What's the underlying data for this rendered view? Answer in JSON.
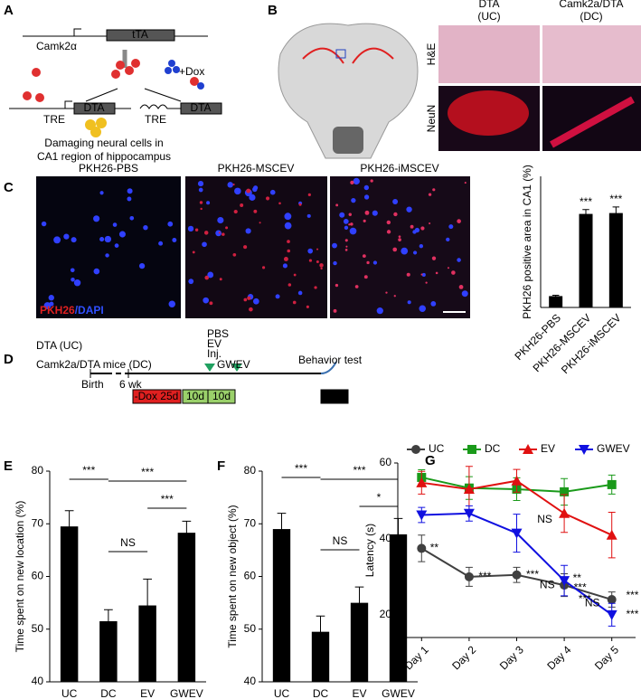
{
  "panel_labels": [
    "A",
    "B",
    "C",
    "D",
    "E",
    "F",
    "G"
  ],
  "panel_a": {
    "promoter": "Camk2α",
    "transactivator": "tTA",
    "dox": "+Dox",
    "dta_left": "DTA",
    "tre_left": "TRE",
    "dta_right": "DTA",
    "tre_right": "TRE",
    "caption": [
      "Damaging neural cells in",
      "CA1 region of hippocampus"
    ]
  },
  "panel_b": {
    "columns": [
      [
        "DTA",
        "(UC)"
      ],
      [
        "Camk2a/DTA",
        "(DC)"
      ]
    ],
    "rows": [
      "H&E",
      "NeuN"
    ]
  },
  "panel_c": {
    "images": [
      "PKH26-PBS",
      "PKH26-MSCEV",
      "PKH26-iMSCEV"
    ],
    "stain": [
      "PKH26",
      "/DAPI"
    ]
  },
  "panel_d": {
    "groups": [
      "DTA (UC)",
      "Camk2a/DTA mice (DC)"
    ],
    "injections": [
      "PBS",
      "EV",
      "Inj.",
      "GWEV"
    ],
    "behavior": "Behavior test",
    "birth": "Birth",
    "age": "6 wk",
    "phases": [
      "-Dox 25d",
      "10d",
      "10d"
    ]
  },
  "chart_data": [
    {
      "type": "bar",
      "ylabel": "PKH26 positive area in CA1 (%)",
      "categories": [
        "PKH26-PBS",
        "PKH26-MSCEV",
        "PKH26-iMSCEV"
      ],
      "values": [
        0.65,
        5.35,
        5.4
      ],
      "errors": [
        0.05,
        0.25,
        0.35
      ],
      "color": "#000000",
      "ylim": [
        0,
        7.5
      ],
      "annotations": [
        "***",
        "***"
      ]
    },
    {
      "type": "bar",
      "ylabel": "Time spent on new location (%)",
      "categories": [
        "UC",
        "DC",
        "EV",
        "GWEV"
      ],
      "values": [
        69.5,
        51.5,
        54.5,
        68.3
      ],
      "errors": [
        3,
        2.2,
        5,
        2.2
      ],
      "color": "#000000",
      "ylim": [
        40,
        80
      ],
      "yticks": [
        40,
        50,
        60,
        70,
        80
      ],
      "annotations": [
        "***",
        "***",
        "NS",
        "***"
      ]
    },
    {
      "type": "bar",
      "ylabel": "Time spent on new object (%)",
      "categories": [
        "UC",
        "DC",
        "EV",
        "GWEV"
      ],
      "values": [
        69,
        49.5,
        55,
        68
      ],
      "errors": [
        3,
        3,
        3,
        3
      ],
      "color": "#000000",
      "ylim": [
        40,
        80
      ],
      "yticks": [
        40,
        50,
        60,
        70,
        80
      ],
      "annotations": [
        "***",
        "***",
        "NS",
        "*"
      ]
    },
    {
      "type": "line",
      "ylabel": "Latency (s)",
      "categories": [
        "Day 1",
        "Day 2",
        "Day 3",
        "Day 4",
        "Day 5"
      ],
      "ylim": [
        14,
        60
      ],
      "yticks": [
        20,
        40,
        60
      ],
      "series": [
        {
          "name": "UC",
          "color": "#404040",
          "values": [
            37.5,
            30,
            30.5,
            27.8,
            24
          ],
          "errors": [
            3.5,
            2.5,
            2,
            3,
            2
          ]
        },
        {
          "name": "DC",
          "color": "#1a9a1a",
          "values": [
            56.2,
            53.4,
            53.1,
            52.4,
            54.3
          ],
          "errors": [
            2,
            3,
            3,
            3.5,
            2.5
          ]
        },
        {
          "name": "EV",
          "color": "#e01010",
          "values": [
            54.8,
            53.1,
            55.3,
            46.7,
            41
          ],
          "errors": [
            3,
            6,
            3,
            5,
            6
          ]
        },
        {
          "name": "GWEV",
          "color": "#1010e0",
          "values": [
            46.3,
            46.7,
            41.5,
            29,
            20
          ],
          "errors": [
            2,
            2,
            5,
            4,
            3
          ]
        }
      ],
      "annotations": [
        "**",
        "***",
        "***",
        "NS",
        "**",
        "***",
        "NS",
        "***",
        "NS",
        "***",
        "***"
      ]
    }
  ]
}
